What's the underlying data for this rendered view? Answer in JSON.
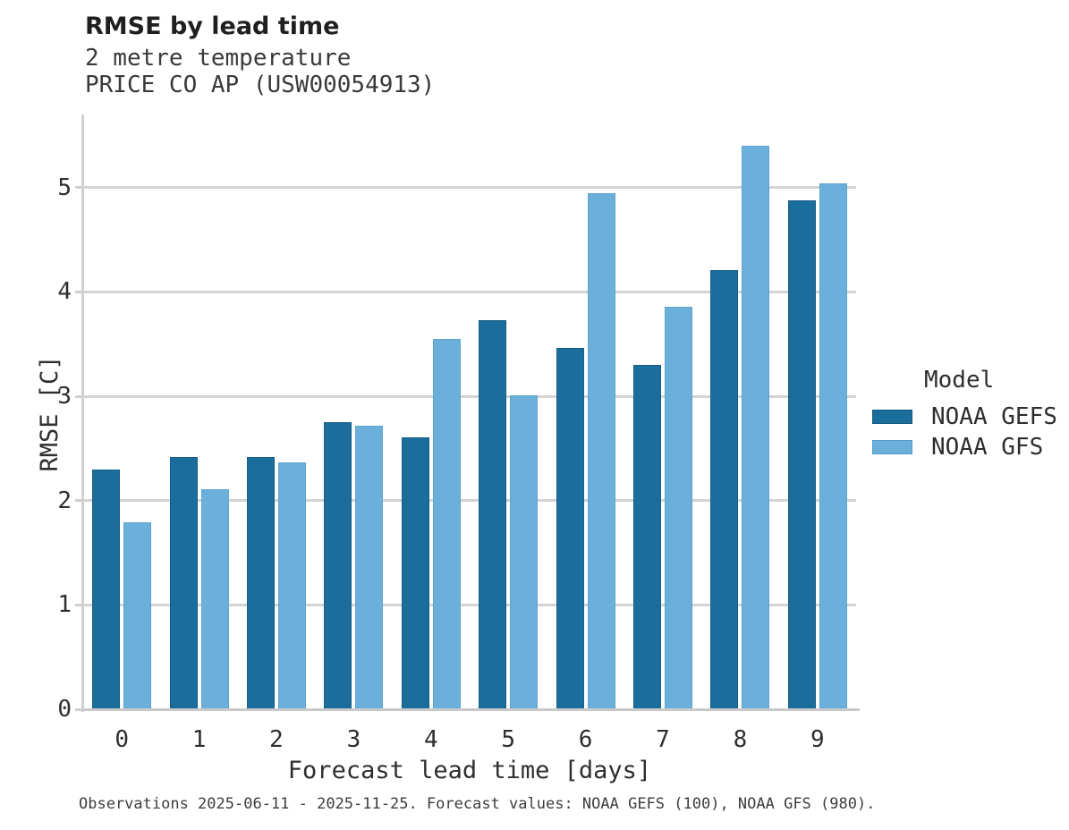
{
  "title": "RMSE by lead time",
  "subtitle_line1": "2 metre temperature",
  "subtitle_line2": "PRICE CO AP (USW00054913)",
  "caption": "Observations 2025-06-11 - 2025-11-25. Forecast values: NOAA GEFS (100), NOAA GFS (980).",
  "legend": {
    "title": "Model",
    "entries": [
      {
        "label": "NOAA GEFS",
        "color": "#1b6d9c",
        "border": "#155a82"
      },
      {
        "label": "NOAA GFS",
        "color": "#6bb0da",
        "border": "#559ccb"
      }
    ]
  },
  "chart_data": {
    "type": "bar",
    "title": "RMSE by lead time",
    "subtitle": [
      "2 metre temperature",
      "PRICE CO AP (USW00054913)"
    ],
    "categories": [
      "0",
      "1",
      "2",
      "3",
      "4",
      "5",
      "6",
      "7",
      "8",
      "9"
    ],
    "series": [
      {
        "name": "NOAA GEFS",
        "color": "#1b6d9c",
        "values": [
          2.3,
          2.42,
          2.42,
          2.75,
          2.61,
          3.73,
          3.46,
          3.3,
          4.21,
          4.88
        ]
      },
      {
        "name": "NOAA GFS",
        "color": "#6bb0da",
        "values": [
          1.79,
          2.11,
          2.37,
          2.72,
          3.55,
          3.01,
          4.95,
          3.86,
          5.4,
          5.04
        ]
      }
    ],
    "xlabel": "Forecast lead time [days]",
    "ylabel": "RMSE [C]",
    "ylim": [
      0,
      5.7
    ],
    "yticks": [
      0,
      1,
      2,
      3,
      4,
      5
    ],
    "grid": true,
    "legend_title": "Model",
    "legend_position": "right",
    "gridline_color": "#d4d4d4",
    "axis_line_color": "#c9c9c9"
  }
}
